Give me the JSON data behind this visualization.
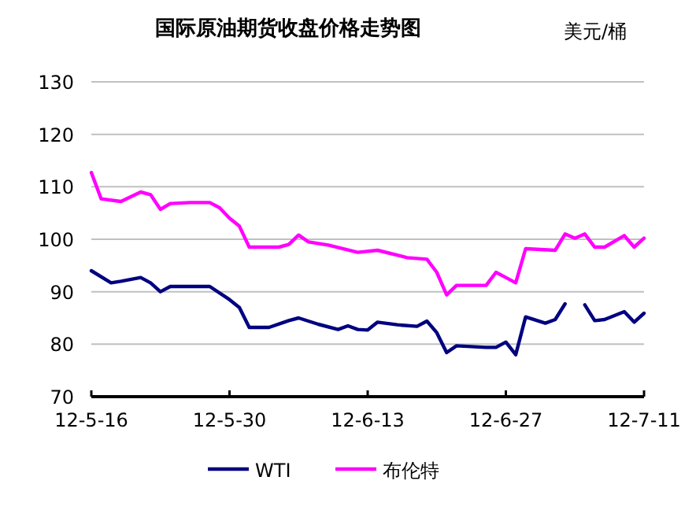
{
  "chart_data": {
    "type": "line",
    "title": "国际原油期货收盘价格走势图",
    "ylabel": "美元/桶",
    "xlim": [
      "--05-16",
      "--07-11"
    ],
    "xticks": [
      {
        "value": "--05-16",
        "label": "12-5-16"
      },
      {
        "value": "--05-30",
        "label": "12-5-30"
      },
      {
        "value": "--06-13",
        "label": "12-6-13"
      },
      {
        "value": "--06-27",
        "label": "12-6-27"
      },
      {
        "value": "--07-11",
        "label": "12-7-11"
      }
    ],
    "ylim": [
      70,
      130
    ],
    "yticks": [
      70,
      80,
      90,
      100,
      110,
      120,
      130
    ],
    "grid": "y",
    "legend": "bottom",
    "marker": "none",
    "line_style": "solid",
    "series": [
      {
        "name": "WTI",
        "color": "#000080",
        "x": [
          "--05-16",
          "--05-18",
          "--05-19",
          "--05-21",
          "--05-22",
          "--05-23",
          "--05-24",
          "--05-28",
          "--05-30",
          "--05-31",
          "--06-01",
          "--06-03",
          "--06-05",
          "--06-06",
          "--06-08",
          "--06-10",
          "--06-11",
          "--06-12",
          "--06-13",
          "--06-14",
          "--06-16",
          "--06-18",
          "--06-19",
          "--06-20",
          "--06-21",
          "--06-22",
          "--06-25",
          "--06-26",
          "--06-27",
          "--06-28",
          "--06-29",
          "--07-01",
          "--07-02",
          "--07-03",
          "--07-04",
          "--07-05",
          "--07-06",
          "--07-07",
          "--07-09",
          "--07-10",
          "--07-11"
        ],
        "values": [
          94,
          91.7,
          92,
          92.7,
          91.7,
          90,
          91,
          91,
          88.5,
          87,
          83.2,
          83.2,
          84.5,
          85,
          83.8,
          82.8,
          83.5,
          82.8,
          82.7,
          84.2,
          83.7,
          83.4,
          84.4,
          82.2,
          78.4,
          79.7,
          79.4,
          79.4,
          80.4,
          78,
          85.2,
          84,
          84.7,
          87.7,
          null,
          87.5,
          84.5,
          84.7,
          86.2,
          84.2,
          85.9
        ]
      },
      {
        "name": "布伦特",
        "color": "#ff00ff",
        "x": [
          "--05-16",
          "--05-17",
          "--05-19",
          "--05-21",
          "--05-22",
          "--05-23",
          "--05-24",
          "--05-26",
          "--05-28",
          "--05-29",
          "--05-30",
          "--05-31",
          "--06-01",
          "--06-04",
          "--06-05",
          "--06-06",
          "--06-07",
          "--06-09",
          "--06-12",
          "--06-14",
          "--06-17",
          "--06-19",
          "--06-20",
          "--06-21",
          "--06-22",
          "--06-25",
          "--06-26",
          "--06-27",
          "--06-28",
          "--06-29",
          "--07-02",
          "--07-03",
          "--07-04",
          "--07-05",
          "--07-06",
          "--07-07",
          "--07-09",
          "--07-10",
          "--07-11"
        ],
        "values": [
          112.7,
          107.7,
          107.2,
          109,
          108.5,
          105.7,
          106.8,
          107,
          107,
          106,
          104,
          102.5,
          98.5,
          98.5,
          99,
          100.8,
          99.5,
          98.9,
          97.5,
          97.9,
          96.5,
          96.2,
          93.7,
          89.4,
          91.2,
          91.2,
          93.7,
          92.7,
          91.7,
          98.2,
          97.9,
          101,
          100.2,
          101,
          98.5,
          98.5,
          100.7,
          98.5,
          100.2
        ]
      }
    ]
  }
}
